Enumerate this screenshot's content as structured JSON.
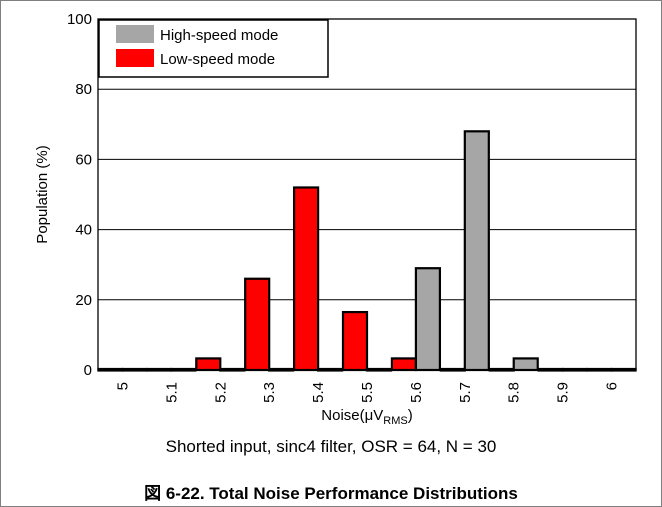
{
  "chart_data": {
    "type": "bar",
    "title": "",
    "xlabel": "Noise",
    "xlabel_unit": "μV",
    "xlabel_unit_sub": "RMS",
    "ylabel": "Population (%)",
    "categories": [
      "5",
      "5.1",
      "5.2",
      "5.3",
      "5.4",
      "5.5",
      "5.6",
      "5.7",
      "5.8",
      "5.9",
      "6"
    ],
    "ylim": [
      0,
      100
    ],
    "yticks": [
      0,
      20,
      40,
      60,
      80,
      100
    ],
    "grid": true,
    "legend_position": "top-left",
    "series": [
      {
        "name": "High-speed mode",
        "color": "#a6a6a6",
        "values": [
          0,
          0,
          0,
          0,
          0,
          0,
          29,
          68,
          3.3,
          0,
          0
        ]
      },
      {
        "name": "Low-speed mode",
        "color": "#ff0000",
        "values": [
          0,
          0,
          3.3,
          26,
          52,
          16.5,
          3.3,
          0,
          0,
          0,
          0
        ]
      }
    ]
  },
  "caption": "Shorted input, sinc4 filter, OSR = 64, N = 30",
  "figure_caption": "図 6-22. Total Noise Performance Distributions"
}
